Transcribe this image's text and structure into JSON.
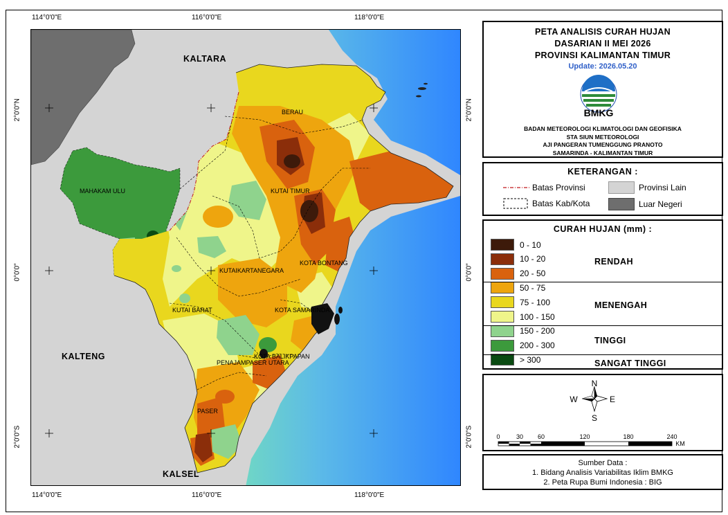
{
  "coordinates": {
    "top": [
      "114°0'0\"E",
      "116°0'0\"E",
      "118°0'0\"E"
    ],
    "bottom": [
      "114°0'0\"E",
      "116°0'0\"E",
      "118°0'0\"E"
    ],
    "left": [
      "2°0'0\"N",
      "0°0'0\"",
      "2°0'0\"S"
    ],
    "right": [
      "2°0'0\"N",
      "0°0'0\"",
      "2°0'0\"S"
    ]
  },
  "map_labels": {
    "kaltara": "KALTARA",
    "kalteng": "KALTENG",
    "kalsel": "KALSEL",
    "berau": "BERAU",
    "mahakam_ulu": "MAHAKAM ULU",
    "kutai_timur": "KUTAI TIMUR",
    "kota_bontang": "KOTA BONTANG",
    "kutai_kartanegara": "KUTAIKARTANEGARA",
    "kutai_barat": "KUTAI BARAT",
    "kota_samarinda": "KOTA SAMARINDA",
    "kota_balikpapan": "KOTA BALIKPAPAN",
    "penajam_paser_utara": "PENAJAMPASER UTARA",
    "paser": "PASER"
  },
  "title": {
    "line1": "PETA ANALISIS CURAH HUJAN",
    "line2": "DASARIAN II MEI 2026",
    "line3": "PROVINSI KALIMANTAN TIMUR",
    "update": "Update: 2026.05.20"
  },
  "institution": {
    "logo_text": "BMKG",
    "line1": "BADAN METEOROLOGI KLIMATOLOGI DAN GEOFISIKA",
    "line2": "STA SIUN METEOROLOGI",
    "line3": "AJI PANGERAN TUMENGGUNG PRANOTO",
    "line4": "SAMARINDA - KALIMANTAN TIMUR"
  },
  "keterangan": {
    "title": "KETERANGAN :",
    "batas_provinsi": "Batas Provinsi",
    "batas_kab": "Batas Kab/Kota",
    "provinsi_lain": "Provinsi Lain",
    "luar_negeri": "Luar Negeri"
  },
  "rainfall_legend": {
    "title": "CURAH HUJAN (mm) :",
    "classes": [
      {
        "label": "0 - 10",
        "color": "#3d1a0a"
      },
      {
        "label": "10 - 20",
        "color": "#8b2e0a"
      },
      {
        "label": "20 - 50",
        "color": "#d9620e"
      },
      {
        "label": "50 - 75",
        "color": "#eea50e"
      },
      {
        "label": "75 - 100",
        "color": "#e9d71e"
      },
      {
        "label": "100 - 150",
        "color": "#eff58a"
      },
      {
        "label": "150 - 200",
        "color": "#8fd38d"
      },
      {
        "label": "200 - 300",
        "color": "#3c9a3c"
      },
      {
        "label": "> 300",
        "color": "#0a4a12"
      }
    ],
    "categories": {
      "rendah": "RENDAH",
      "menengah": "MENENGAH",
      "tinggi": "TINGGI",
      "sangat_tinggi": "SANGAT TINGGI"
    }
  },
  "compass": {
    "n": "N",
    "s": "S",
    "e": "E",
    "w": "W"
  },
  "scale": {
    "ticks": [
      "0",
      "30",
      "60",
      "120",
      "180",
      "240"
    ],
    "unit": "KM"
  },
  "source": {
    "title": "Sumber Data :",
    "line1": "1. Bidang Analisis Variabilitas Iklim BMKG",
    "line2": "2. Peta Rupa Bumi Indonesia : BIG"
  },
  "colors": {
    "foreign": "#6e6e6e",
    "other_province": "#d4d4d4",
    "border_province": "#c0161b",
    "sea_deep": "#2f86ff",
    "sea_shallow": "#6fd6c6"
  }
}
